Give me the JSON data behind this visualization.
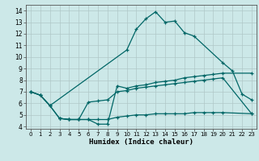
{
  "title": "",
  "xlabel": "Humidex (Indice chaleur)",
  "ylabel": "",
  "bg_color": "#cce8e8",
  "grid_color": "#b0c8c8",
  "line_color": "#006666",
  "xlim": [
    -0.5,
    23.5
  ],
  "ylim": [
    3.8,
    14.5
  ],
  "xticks": [
    0,
    1,
    2,
    3,
    4,
    5,
    6,
    7,
    8,
    9,
    10,
    11,
    12,
    13,
    14,
    15,
    16,
    17,
    18,
    19,
    20,
    21,
    22,
    23
  ],
  "yticks": [
    4,
    5,
    6,
    7,
    8,
    9,
    10,
    11,
    12,
    13,
    14
  ],
  "series": [
    {
      "x": [
        0,
        1,
        2,
        10,
        11,
        12,
        13,
        14,
        15,
        16,
        17,
        20,
        21,
        22,
        23
      ],
      "y": [
        7.0,
        6.7,
        5.8,
        10.6,
        12.4,
        13.3,
        13.9,
        13.0,
        13.1,
        12.1,
        11.8,
        9.5,
        8.8,
        6.8,
        6.3
      ]
    },
    {
      "x": [
        0,
        1,
        2,
        3,
        4,
        5,
        6,
        7,
        8,
        9,
        10,
        11,
        12,
        13,
        14,
        15,
        16,
        17,
        18,
        19,
        20,
        23
      ],
      "y": [
        7.0,
        6.7,
        5.8,
        4.7,
        4.6,
        4.6,
        4.6,
        4.2,
        4.2,
        7.5,
        7.3,
        7.5,
        7.6,
        7.8,
        7.9,
        8.0,
        8.2,
        8.3,
        8.4,
        8.5,
        8.6,
        8.6
      ]
    },
    {
      "x": [
        0,
        1,
        2,
        3,
        4,
        5,
        6,
        7,
        8,
        9,
        10,
        11,
        12,
        13,
        14,
        15,
        16,
        17,
        18,
        19,
        20,
        23
      ],
      "y": [
        7.0,
        6.7,
        5.8,
        4.7,
        4.6,
        4.6,
        6.1,
        6.2,
        6.3,
        7.0,
        7.1,
        7.3,
        7.4,
        7.5,
        7.6,
        7.7,
        7.8,
        7.9,
        8.0,
        8.1,
        8.2,
        5.1
      ]
    },
    {
      "x": [
        3,
        4,
        5,
        6,
        7,
        8,
        9,
        10,
        11,
        12,
        13,
        14,
        15,
        16,
        17,
        18,
        19,
        20,
        23
      ],
      "y": [
        4.7,
        4.6,
        4.6,
        4.6,
        4.6,
        4.6,
        4.8,
        4.9,
        5.0,
        5.0,
        5.1,
        5.1,
        5.1,
        5.1,
        5.2,
        5.2,
        5.2,
        5.2,
        5.1
      ]
    }
  ]
}
